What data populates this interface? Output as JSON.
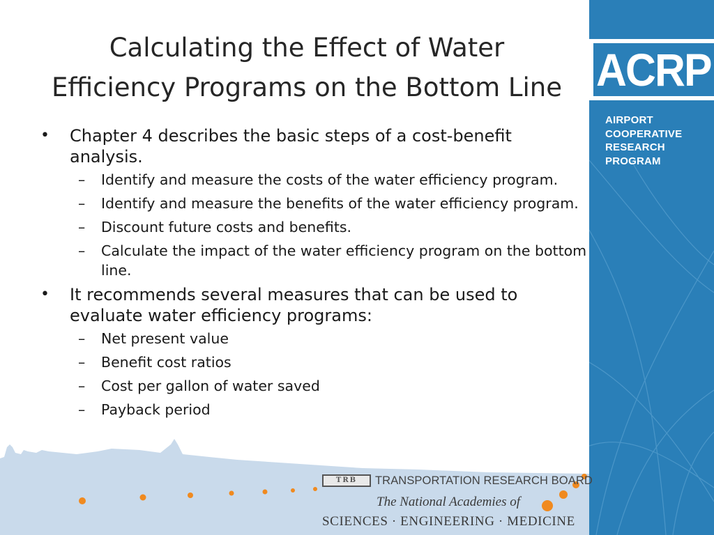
{
  "title": {
    "line1": "Calculating the Effect of Water",
    "line2": "Efficiency Programs on the Bottom Line"
  },
  "bullets": [
    {
      "text": "Chapter 4 describes the basic steps of a cost-benefit analysis.",
      "sub": [
        "Identify and measure the costs of the water efficiency program.",
        "Identify and measure the benefits of the water efficiency program.",
        "Discount future costs and benefits.",
        "Calculate the impact of the water efficiency program on the bottom line."
      ]
    },
    {
      "text": "It recommends several measures that can be used to evaluate water efficiency programs:",
      "sub": [
        "Net present value",
        "Benefit cost ratios",
        "Cost per gallon of water saved",
        "Payback period"
      ]
    }
  ],
  "markers": {
    "level1": "•",
    "level2": "–"
  },
  "brand": {
    "logo": "ACRP",
    "name_lines": [
      "AIRPORT",
      "COOPERATIVE",
      "RESEARCH",
      "PROGRAM"
    ]
  },
  "footer": {
    "trb_mark": "TRB",
    "trb": "TRANSPORTATION RESEARCH BOARD",
    "national_academies": "The National Academies of",
    "sem": "SCIENCES · ENGINEERING · MEDICINE"
  },
  "colors": {
    "panel_blue": "#2a7fb8",
    "accent_orange": "#f08a1f",
    "skyline_blue": "#c9daeb"
  }
}
